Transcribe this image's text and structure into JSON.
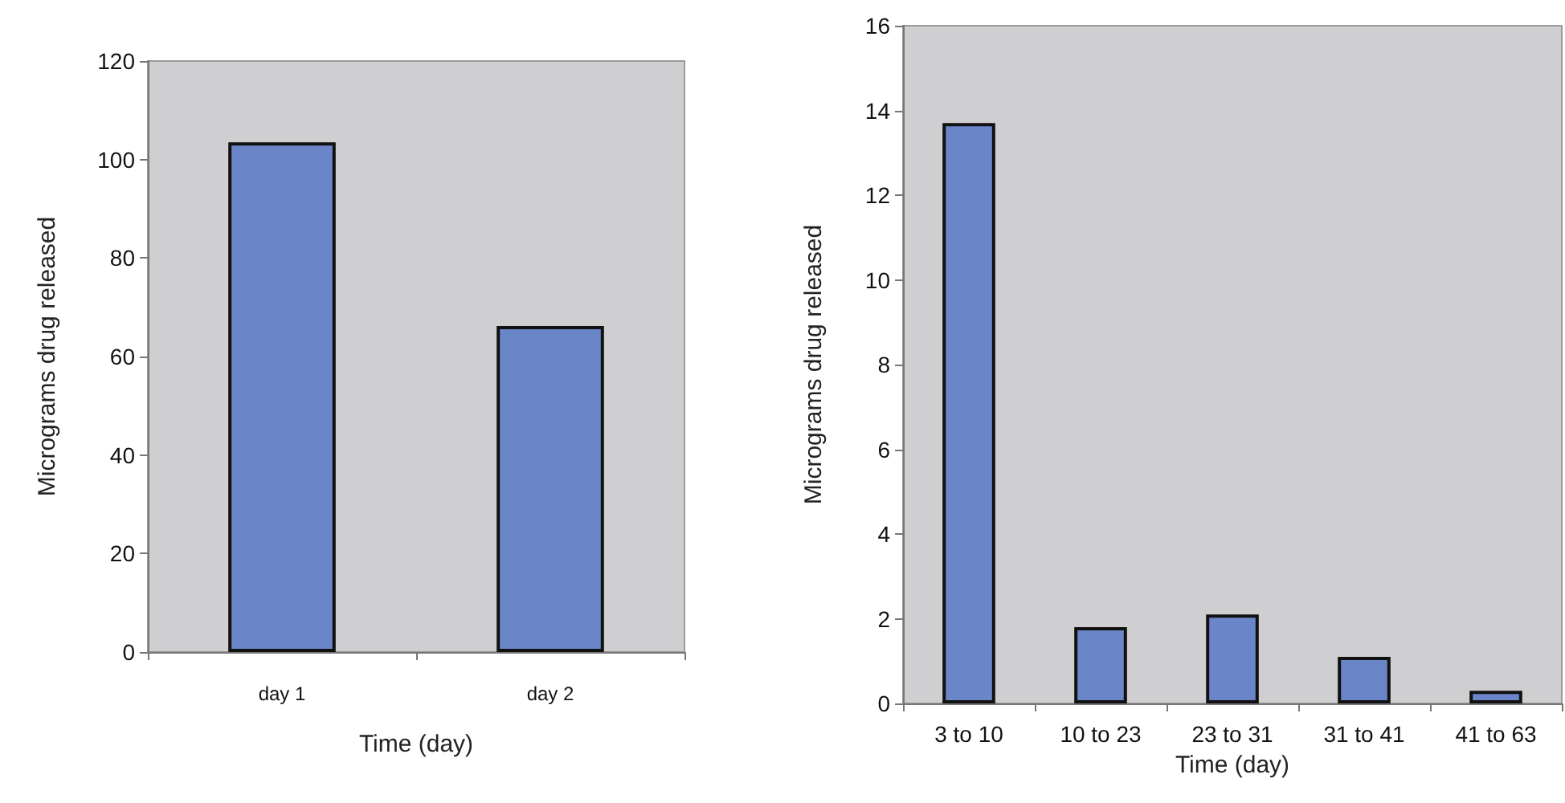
{
  "chart_data": [
    {
      "type": "bar",
      "xlabel": "Time (day)",
      "ylabel": "Micrograms drug released",
      "categories": [
        "day 1",
        "day 2"
      ],
      "values": [
        103.5,
        66.2
      ],
      "color": "#6a86c8",
      "ylim": [
        0,
        120
      ],
      "yticks": [
        0,
        20,
        40,
        60,
        80,
        100,
        120
      ],
      "grid": false
    },
    {
      "type": "bar",
      "xlabel": "Time (day)",
      "ylabel": "Micrograms drug released",
      "categories": [
        "3 to 10",
        "10 to 23",
        "23 to 31",
        "31 to 41",
        "41 to 63"
      ],
      "values": [
        13.7,
        1.8,
        2.1,
        1.1,
        0.3
      ],
      "color": "#6a86c8",
      "ylim": [
        0,
        16
      ],
      "yticks": [
        0,
        2,
        4,
        6,
        8,
        10,
        12,
        14,
        16
      ],
      "grid": false
    }
  ]
}
